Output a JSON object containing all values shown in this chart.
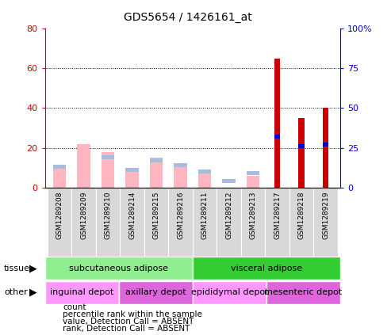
{
  "title": "GDS5654 / 1426161_at",
  "samples": [
    "GSM1289208",
    "GSM1289209",
    "GSM1289210",
    "GSM1289214",
    "GSM1289215",
    "GSM1289216",
    "GSM1289211",
    "GSM1289212",
    "GSM1289213",
    "GSM1289217",
    "GSM1289218",
    "GSM1289219"
  ],
  "count_values": [
    0,
    0,
    0,
    0,
    0,
    0,
    0,
    0,
    0,
    65,
    35,
    40
  ],
  "percentile_rank": [
    0,
    0,
    0,
    0,
    0,
    0,
    0,
    0,
    0,
    32,
    26,
    27
  ],
  "absent_value": [
    10,
    22,
    18,
    10,
    15,
    11,
    9,
    0,
    6,
    0,
    0,
    0
  ],
  "absent_rank": [
    13,
    0,
    19,
    11,
    17,
    14,
    10,
    4,
    9,
    0,
    0,
    0
  ],
  "ylim_left": [
    0,
    80
  ],
  "ylim_right": [
    0,
    100
  ],
  "yticks_left": [
    0,
    20,
    40,
    60,
    80
  ],
  "yticks_right": [
    0,
    25,
    50,
    75,
    100
  ],
  "ytick_labels_right": [
    "0",
    "25",
    "50",
    "75",
    "100%"
  ],
  "tissue_groups": [
    {
      "label": "subcutaneous adipose",
      "start": 0,
      "end": 6,
      "color": "#90EE90"
    },
    {
      "label": "visceral adipose",
      "start": 6,
      "end": 12,
      "color": "#33CC33"
    }
  ],
  "other_groups": [
    {
      "label": "inguinal depot",
      "start": 0,
      "end": 3,
      "color": "#FF99FF"
    },
    {
      "label": "axillary depot",
      "start": 3,
      "end": 6,
      "color": "#DD66DD"
    },
    {
      "label": "epididymal depot",
      "start": 6,
      "end": 9,
      "color": "#FF99FF"
    },
    {
      "label": "mesenteric depot",
      "start": 9,
      "end": 12,
      "color": "#DD66DD"
    }
  ],
  "count_color": "#CC0000",
  "percentile_color": "#0000CC",
  "absent_value_color": "#FFB6C1",
  "absent_rank_color": "#AABBDD",
  "left_axis_color": "#CC0000",
  "right_axis_color": "#0000CC"
}
